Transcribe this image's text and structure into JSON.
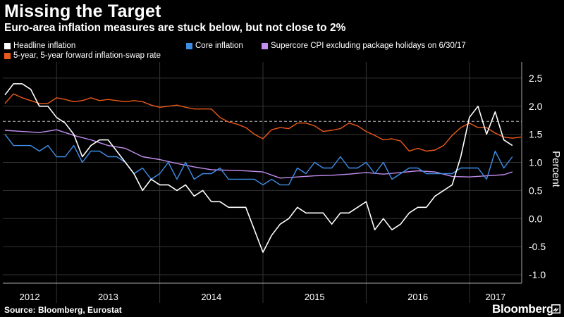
{
  "header": {
    "title": "Missing the Target",
    "subtitle": "Euro-area inflation measures are stuck below, but not close to 2%"
  },
  "legend": [
    {
      "label": "Headline inflation",
      "color": "#ffffff"
    },
    {
      "label": "Core inflation",
      "color": "#3e8ee8"
    },
    {
      "label": "Supercore CPI excluding package holidays on 6/30/17",
      "color": "#c38ef0"
    },
    {
      "label": "5-year, 5-year forward inflation-swap rate",
      "color": "#ec5a19"
    }
  ],
  "footer": {
    "source": "Source: Bloomberg, Eurostat",
    "brand": "Bloomberg"
  },
  "chart_data": {
    "type": "line",
    "ylabel": "Percent",
    "ylim": [
      -1.0,
      2.5
    ],
    "yticks": [
      "2.5",
      "2.0",
      "1.5",
      "1.0",
      "0.5",
      "0.0",
      "-0.5",
      "-1.0"
    ],
    "xlim": [
      "2012-07",
      "2017-07"
    ],
    "xticks": [
      "2012",
      "2013",
      "2014",
      "2015",
      "2016",
      "2017"
    ],
    "reference_line": {
      "y": 1.73,
      "style": "dashed"
    },
    "grid": true,
    "series": [
      {
        "name": "Headline inflation",
        "color": "#ffffff",
        "points": [
          [
            "2012-07",
            2.2
          ],
          [
            "2012-08",
            2.4
          ],
          [
            "2012-09",
            2.4
          ],
          [
            "2012-10",
            2.3
          ],
          [
            "2012-11",
            2.0
          ],
          [
            "2012-12",
            2.0
          ],
          [
            "2013-01",
            1.8
          ],
          [
            "2013-02",
            1.7
          ],
          [
            "2013-03",
            1.5
          ],
          [
            "2013-04",
            1.1
          ],
          [
            "2013-05",
            1.3
          ],
          [
            "2013-06",
            1.4
          ],
          [
            "2013-07",
            1.4
          ],
          [
            "2013-08",
            1.2
          ],
          [
            "2013-09",
            1.0
          ],
          [
            "2013-10",
            0.8
          ],
          [
            "2013-11",
            0.5
          ],
          [
            "2013-12",
            0.7
          ],
          [
            "2014-01",
            0.6
          ],
          [
            "2014-02",
            0.6
          ],
          [
            "2014-03",
            0.5
          ],
          [
            "2014-04",
            0.6
          ],
          [
            "2014-05",
            0.4
          ],
          [
            "2014-06",
            0.5
          ],
          [
            "2014-07",
            0.3
          ],
          [
            "2014-08",
            0.3
          ],
          [
            "2014-09",
            0.2
          ],
          [
            "2014-10",
            0.2
          ],
          [
            "2014-11",
            0.2
          ],
          [
            "2014-12",
            -0.2
          ],
          [
            "2015-01",
            -0.6
          ],
          [
            "2015-02",
            -0.3
          ],
          [
            "2015-03",
            -0.1
          ],
          [
            "2015-04",
            0.0
          ],
          [
            "2015-05",
            0.2
          ],
          [
            "2015-06",
            0.1
          ],
          [
            "2015-07",
            0.1
          ],
          [
            "2015-08",
            0.1
          ],
          [
            "2015-09",
            -0.1
          ],
          [
            "2015-10",
            0.1
          ],
          [
            "2015-11",
            0.1
          ],
          [
            "2015-12",
            0.2
          ],
          [
            "2016-01",
            0.3
          ],
          [
            "2016-02",
            -0.2
          ],
          [
            "2016-03",
            0.0
          ],
          [
            "2016-04",
            -0.2
          ],
          [
            "2016-05",
            -0.1
          ],
          [
            "2016-06",
            0.1
          ],
          [
            "2016-07",
            0.2
          ],
          [
            "2016-08",
            0.2
          ],
          [
            "2016-09",
            0.4
          ],
          [
            "2016-10",
            0.5
          ],
          [
            "2016-11",
            0.6
          ],
          [
            "2016-12",
            1.1
          ],
          [
            "2017-01",
            1.8
          ],
          [
            "2017-02",
            2.0
          ],
          [
            "2017-03",
            1.5
          ],
          [
            "2017-04",
            1.9
          ],
          [
            "2017-05",
            1.4
          ],
          [
            "2017-06",
            1.3
          ]
        ]
      },
      {
        "name": "Core inflation",
        "color": "#3e8ee8",
        "points": [
          [
            "2012-07",
            1.5
          ],
          [
            "2012-08",
            1.3
          ],
          [
            "2012-09",
            1.3
          ],
          [
            "2012-10",
            1.3
          ],
          [
            "2012-11",
            1.2
          ],
          [
            "2012-12",
            1.3
          ],
          [
            "2013-01",
            1.1
          ],
          [
            "2013-02",
            1.1
          ],
          [
            "2013-03",
            1.3
          ],
          [
            "2013-04",
            1.0
          ],
          [
            "2013-05",
            1.2
          ],
          [
            "2013-06",
            1.2
          ],
          [
            "2013-07",
            1.1
          ],
          [
            "2013-08",
            1.1
          ],
          [
            "2013-09",
            1.0
          ],
          [
            "2013-10",
            0.8
          ],
          [
            "2013-11",
            0.9
          ],
          [
            "2013-12",
            0.7
          ],
          [
            "2014-01",
            0.8
          ],
          [
            "2014-02",
            1.0
          ],
          [
            "2014-03",
            0.7
          ],
          [
            "2014-04",
            1.0
          ],
          [
            "2014-05",
            0.7
          ],
          [
            "2014-06",
            0.8
          ],
          [
            "2014-07",
            0.8
          ],
          [
            "2014-08",
            0.9
          ],
          [
            "2014-09",
            0.7
          ],
          [
            "2014-10",
            0.7
          ],
          [
            "2014-11",
            0.7
          ],
          [
            "2014-12",
            0.7
          ],
          [
            "2015-01",
            0.6
          ],
          [
            "2015-02",
            0.7
          ],
          [
            "2015-03",
            0.6
          ],
          [
            "2015-04",
            0.6
          ],
          [
            "2015-05",
            0.9
          ],
          [
            "2015-06",
            0.8
          ],
          [
            "2015-07",
            1.0
          ],
          [
            "2015-08",
            0.9
          ],
          [
            "2015-09",
            0.9
          ],
          [
            "2015-10",
            1.1
          ],
          [
            "2015-11",
            0.9
          ],
          [
            "2015-12",
            0.9
          ],
          [
            "2016-01",
            1.0
          ],
          [
            "2016-02",
            0.8
          ],
          [
            "2016-03",
            1.0
          ],
          [
            "2016-04",
            0.7
          ],
          [
            "2016-05",
            0.8
          ],
          [
            "2016-06",
            0.9
          ],
          [
            "2016-07",
            0.9
          ],
          [
            "2016-08",
            0.8
          ],
          [
            "2016-09",
            0.8
          ],
          [
            "2016-10",
            0.8
          ],
          [
            "2016-11",
            0.8
          ],
          [
            "2016-12",
            0.9
          ],
          [
            "2017-01",
            0.9
          ],
          [
            "2017-02",
            0.9
          ],
          [
            "2017-03",
            0.7
          ],
          [
            "2017-04",
            1.2
          ],
          [
            "2017-05",
            0.9
          ],
          [
            "2017-06",
            1.1
          ]
        ]
      },
      {
        "name": "Supercore CPI excluding package holidays on 6/30/17",
        "color": "#c38ef0",
        "points": [
          [
            "2012-07",
            1.57
          ],
          [
            "2012-09",
            1.55
          ],
          [
            "2012-11",
            1.53
          ],
          [
            "2013-01",
            1.58
          ],
          [
            "2013-03",
            1.48
          ],
          [
            "2013-05",
            1.4
          ],
          [
            "2013-07",
            1.3
          ],
          [
            "2013-09",
            1.25
          ],
          [
            "2013-11",
            1.1
          ],
          [
            "2014-01",
            1.05
          ],
          [
            "2014-03",
            0.98
          ],
          [
            "2014-05",
            0.92
          ],
          [
            "2014-07",
            0.87
          ],
          [
            "2014-09",
            0.86
          ],
          [
            "2014-11",
            0.85
          ],
          [
            "2015-01",
            0.83
          ],
          [
            "2015-03",
            0.72
          ],
          [
            "2015-05",
            0.74
          ],
          [
            "2015-07",
            0.76
          ],
          [
            "2015-09",
            0.77
          ],
          [
            "2015-11",
            0.79
          ],
          [
            "2016-01",
            0.82
          ],
          [
            "2016-03",
            0.79
          ],
          [
            "2016-05",
            0.82
          ],
          [
            "2016-07",
            0.85
          ],
          [
            "2016-09",
            0.83
          ],
          [
            "2016-11",
            0.75
          ],
          [
            "2017-01",
            0.74
          ],
          [
            "2017-03",
            0.76
          ],
          [
            "2017-05",
            0.78
          ],
          [
            "2017-06",
            0.83
          ]
        ]
      },
      {
        "name": "5-year, 5-year forward inflation-swap rate",
        "color": "#ec5a19",
        "points": [
          [
            "2012-07",
            2.05
          ],
          [
            "2012-08",
            2.22
          ],
          [
            "2012-09",
            2.15
          ],
          [
            "2012-10",
            2.1
          ],
          [
            "2012-11",
            2.05
          ],
          [
            "2012-12",
            2.05
          ],
          [
            "2013-01",
            2.15
          ],
          [
            "2013-02",
            2.12
          ],
          [
            "2013-03",
            2.08
          ],
          [
            "2013-04",
            2.1
          ],
          [
            "2013-05",
            2.15
          ],
          [
            "2013-06",
            2.1
          ],
          [
            "2013-07",
            2.12
          ],
          [
            "2013-08",
            2.1
          ],
          [
            "2013-09",
            2.08
          ],
          [
            "2013-10",
            2.1
          ],
          [
            "2013-11",
            2.08
          ],
          [
            "2013-12",
            2.02
          ],
          [
            "2014-01",
            1.98
          ],
          [
            "2014-02",
            2.0
          ],
          [
            "2014-03",
            2.02
          ],
          [
            "2014-04",
            1.98
          ],
          [
            "2014-05",
            1.95
          ],
          [
            "2014-06",
            1.95
          ],
          [
            "2014-07",
            1.95
          ],
          [
            "2014-08",
            1.8
          ],
          [
            "2014-09",
            1.72
          ],
          [
            "2014-10",
            1.68
          ],
          [
            "2014-11",
            1.62
          ],
          [
            "2014-12",
            1.5
          ],
          [
            "2015-01",
            1.42
          ],
          [
            "2015-02",
            1.58
          ],
          [
            "2015-03",
            1.62
          ],
          [
            "2015-04",
            1.6
          ],
          [
            "2015-05",
            1.7
          ],
          [
            "2015-06",
            1.7
          ],
          [
            "2015-07",
            1.65
          ],
          [
            "2015-08",
            1.55
          ],
          [
            "2015-09",
            1.57
          ],
          [
            "2015-10",
            1.6
          ],
          [
            "2015-11",
            1.7
          ],
          [
            "2015-12",
            1.65
          ],
          [
            "2016-01",
            1.55
          ],
          [
            "2016-02",
            1.48
          ],
          [
            "2016-03",
            1.4
          ],
          [
            "2016-04",
            1.42
          ],
          [
            "2016-05",
            1.38
          ],
          [
            "2016-06",
            1.2
          ],
          [
            "2016-07",
            1.25
          ],
          [
            "2016-08",
            1.2
          ],
          [
            "2016-09",
            1.22
          ],
          [
            "2016-10",
            1.3
          ],
          [
            "2016-11",
            1.48
          ],
          [
            "2016-12",
            1.62
          ],
          [
            "2017-01",
            1.7
          ],
          [
            "2017-02",
            1.62
          ],
          [
            "2017-03",
            1.62
          ],
          [
            "2017-04",
            1.52
          ],
          [
            "2017-05",
            1.45
          ],
          [
            "2017-06",
            1.43
          ],
          [
            "2017-07",
            1.45
          ]
        ]
      }
    ]
  }
}
